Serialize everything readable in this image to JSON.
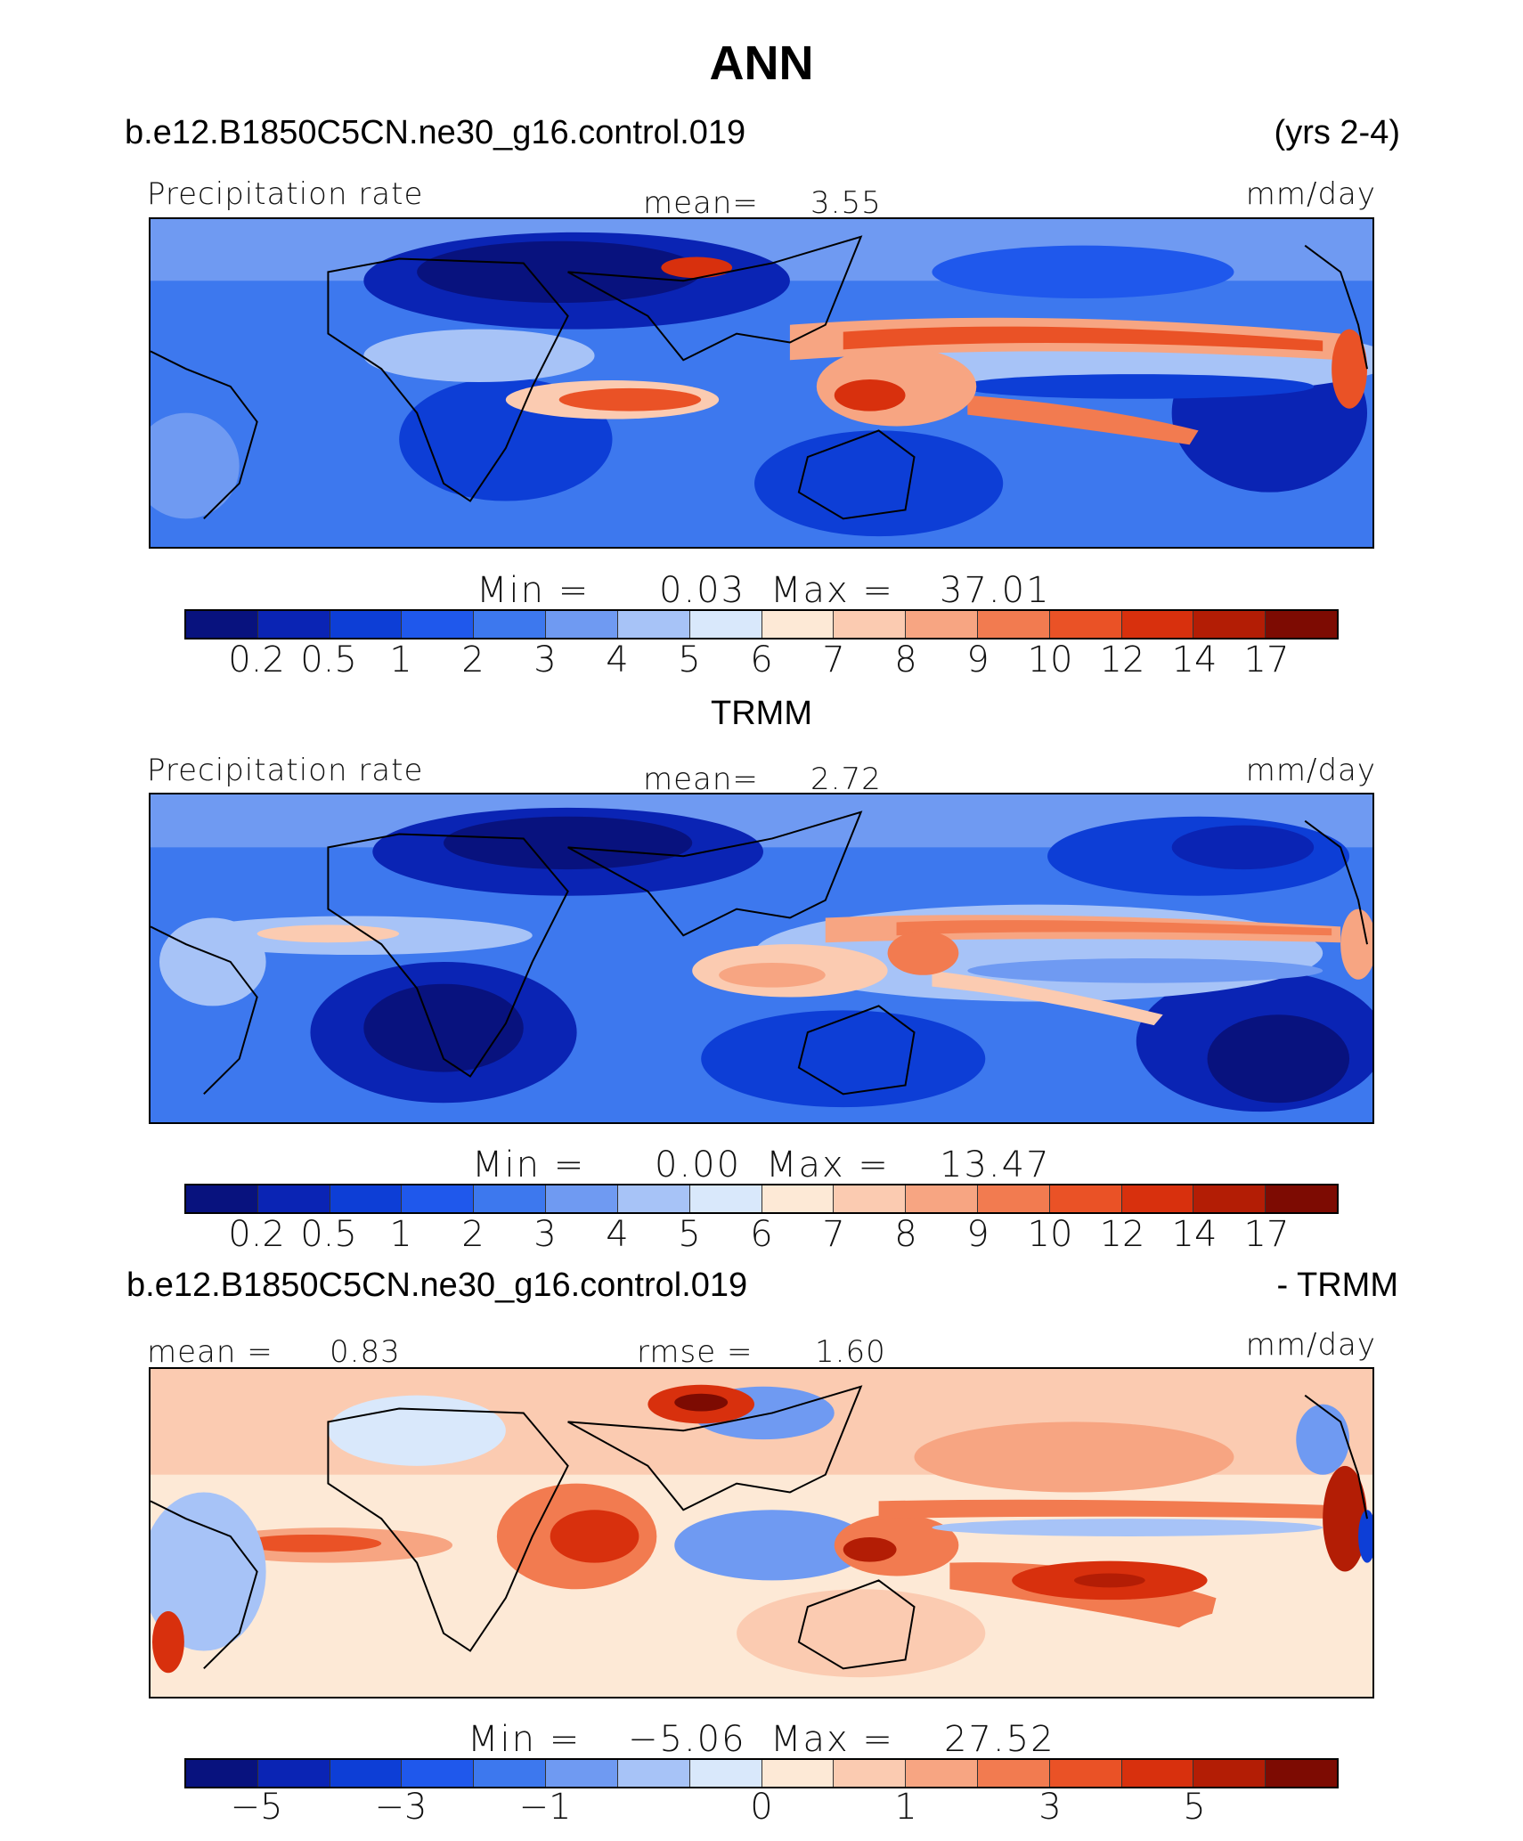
{
  "title": "ANN",
  "model_case": "b.e12.B1850C5CN.ne30_g16.control.019",
  "years": "(yrs 2-4)",
  "obs_title": "TRMM",
  "diff_case": "b.e12.B1850C5CN.ne30_g16.control.019",
  "diff_suffix": "- TRMM",
  "panels": [
    {
      "variable": "Precipitation rate",
      "stat_label": "mean=",
      "stat_value": "3.55",
      "units": "mm/day",
      "min_label": "Min  =",
      "min_value": "0.03",
      "max_label": "Max  =",
      "max_value": "37.01"
    },
    {
      "variable": "Precipitation rate",
      "stat_label": "mean=",
      "stat_value": "2.72",
      "units": "mm/day",
      "min_label": "Min  =",
      "min_value": "0.00",
      "max_label": "Max  =",
      "max_value": "13.47"
    },
    {
      "mean_label": "mean  =",
      "mean_value": "0.83",
      "rmse_label": "rmse  =",
      "rmse_value": "1.60",
      "units": "mm/day",
      "min_label": "Min  =",
      "min_value": "−5.06",
      "max_label": "Max  =",
      "max_value": "27.52"
    }
  ],
  "colorbar_colors": [
    "#08127e",
    "#0a24b4",
    "#0d3ed6",
    "#1f58ec",
    "#3d78ee",
    "#6f9af2",
    "#a7c3f7",
    "#d9e8fb",
    "#fde9d6",
    "#fbcbb1",
    "#f7a582",
    "#f27b50",
    "#ea5226",
    "#d8300d",
    "#b31d05",
    "#7d0b02"
  ],
  "colorbar_ticks_abs": [
    "0.2",
    "0.5",
    "1",
    "2",
    "3",
    "4",
    "5",
    "6",
    "7",
    "8",
    "9",
    "10",
    "12",
    "14",
    "17"
  ],
  "colorbar_ticks_diff": [
    {
      "label": "−5",
      "boundary": 1
    },
    {
      "label": "−3",
      "boundary": 3
    },
    {
      "label": "−1",
      "boundary": 5
    },
    {
      "label": "0",
      "boundary": 8
    },
    {
      "label": "1",
      "boundary": 10
    },
    {
      "label": "3",
      "boundary": 12
    },
    {
      "label": "5",
      "boundary": 14
    }
  ]
}
